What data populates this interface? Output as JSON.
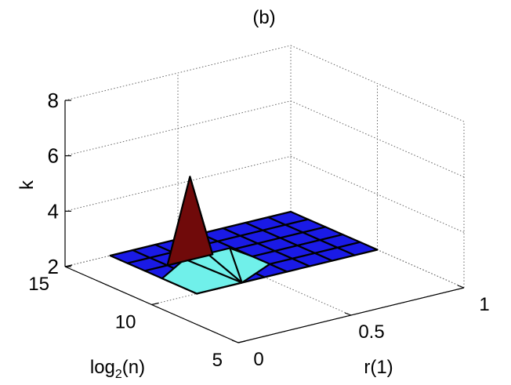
{
  "chart_data": {
    "type": "surface3d",
    "panel_label": "(b)",
    "xlabel": "r(1)",
    "ylabel_base": "log",
    "ylabel_sub": "2",
    "ylabel_rest": "(n)",
    "zlabel": "k",
    "xlim": [
      0,
      1
    ],
    "ylim": [
      5,
      15
    ],
    "zlim": [
      2,
      8
    ],
    "x_ticks": [
      "0",
      "0.5",
      "1"
    ],
    "y_ticks": [
      "5",
      "10",
      "15"
    ],
    "z_ticks": [
      "2",
      "4",
      "6",
      "8"
    ],
    "x_tick_values": [
      0,
      0.5,
      1
    ],
    "y_tick_values": [
      5,
      10,
      15
    ],
    "z_tick_values": [
      2,
      4,
      6,
      8
    ],
    "grid": true,
    "colors": {
      "flat": "#1a1ae6",
      "low_peak": "#70f0ea",
      "high_peak": "#700a0a",
      "edge": "#000000"
    },
    "flat_region": {
      "x_range": [
        0.2,
        1
      ],
      "y_range": [
        10,
        15
      ],
      "x_steps": 8,
      "y_steps": 5,
      "z": 2
    },
    "peak_main": {
      "x": 0.4,
      "y": 13,
      "z": 5
    },
    "peak_base": [
      {
        "x": 0.3,
        "y": 13,
        "z": 2
      },
      {
        "x": 0.4,
        "y": 14,
        "z": 2
      },
      {
        "x": 0.5,
        "y": 13,
        "z": 2
      }
    ],
    "secondary_surface": [
      {
        "x": 0.2,
        "y": 12,
        "z": 2
      },
      {
        "x": 0.3,
        "y": 12,
        "z": 2.5
      },
      {
        "x": 0.4,
        "y": 12,
        "z": 2.5
      },
      {
        "x": 0.5,
        "y": 12,
        "z": 2.5
      },
      {
        "x": 0.6,
        "y": 12,
        "z": 2
      },
      {
        "x": 0.6,
        "y": 11,
        "z": 2
      },
      {
        "x": 0.4,
        "y": 10,
        "z": 2
      },
      {
        "x": 0.2,
        "y": 10,
        "z": 2
      }
    ]
  }
}
